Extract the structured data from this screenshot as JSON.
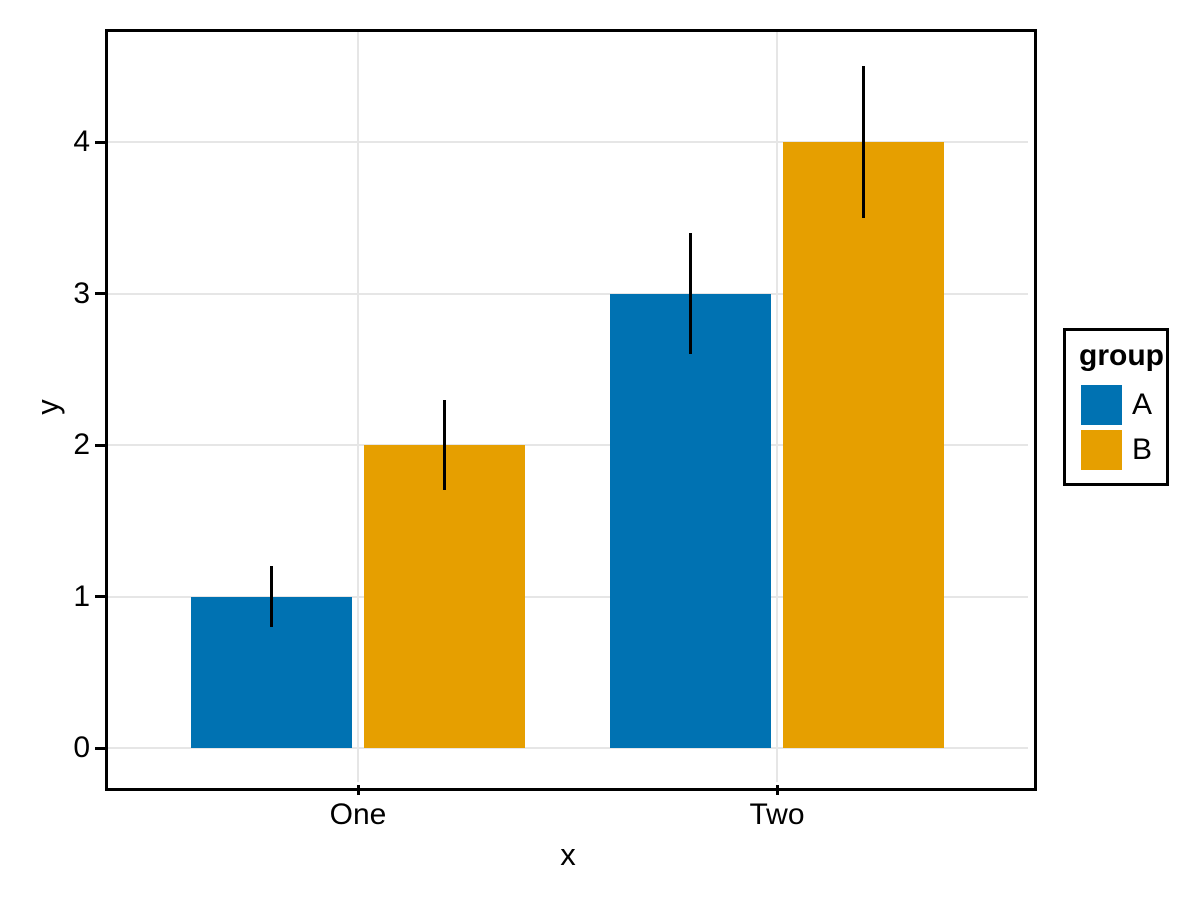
{
  "chart_data": {
    "type": "bar",
    "title": "",
    "xlabel": "x",
    "ylabel": "y",
    "categories": [
      "One",
      "Two"
    ],
    "series": [
      {
        "name": "A",
        "color": "#0072B2",
        "values": [
          1,
          3
        ],
        "error_low": [
          0.8,
          2.6
        ],
        "error_high": [
          1.2,
          3.4
        ]
      },
      {
        "name": "B",
        "color": "#E69F00",
        "values": [
          2,
          4
        ],
        "error_low": [
          1.7,
          3.5
        ],
        "error_high": [
          2.3,
          4.5
        ]
      }
    ],
    "y_ticks": [
      "0",
      "1",
      "2",
      "3",
      "4"
    ],
    "y_tick_values": [
      0,
      1,
      2,
      3,
      4
    ],
    "ylim": [
      -0.225,
      4.725
    ],
    "grid": "major-only",
    "legend": {
      "title": "group",
      "position": "right",
      "labels": [
        "A",
        "B"
      ]
    },
    "colors": {
      "grid": "#E6E6E6",
      "panel_border": "#000000",
      "error_bar": "#000000",
      "background": "#FFFFFF",
      "text": "#000000"
    }
  }
}
